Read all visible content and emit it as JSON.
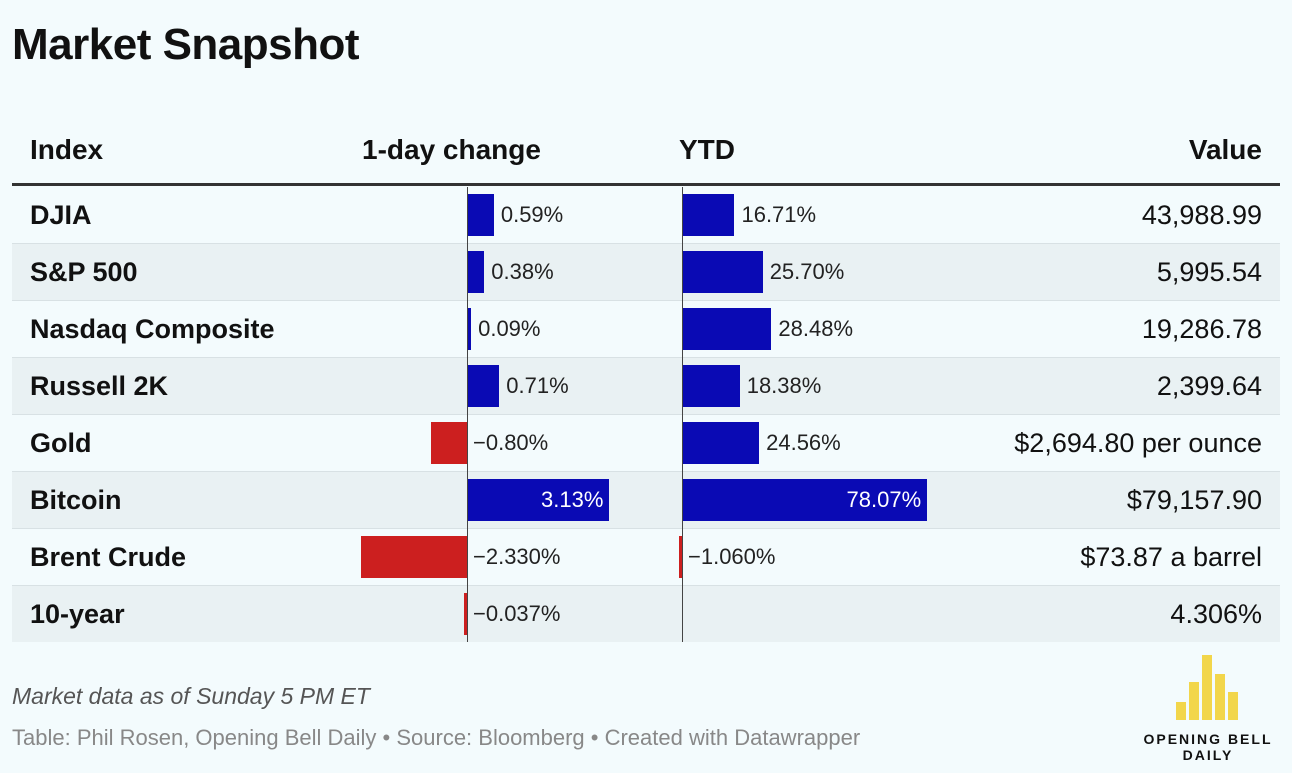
{
  "title": "Market Snapshot",
  "columns": {
    "index": "Index",
    "day": "1-day change",
    "ytd": "YTD",
    "value": "Value"
  },
  "colors": {
    "positive": "#0a0ab4",
    "negative": "#cc1f1f",
    "background": "#f3fbfd",
    "logo_yellow": "#f2d64b"
  },
  "chart_data": {
    "type": "table",
    "rows": [
      {
        "name": "DJIA",
        "day": 0.59,
        "day_label": "0.59%",
        "ytd": 16.71,
        "ytd_label": "16.71%",
        "value": "43,988.99"
      },
      {
        "name": "S&P 500",
        "day": 0.38,
        "day_label": "0.38%",
        "ytd": 25.7,
        "ytd_label": "25.70%",
        "value": "5,995.54"
      },
      {
        "name": "Nasdaq Composite",
        "day": 0.09,
        "day_label": "0.09%",
        "ytd": 28.48,
        "ytd_label": "28.48%",
        "value": "19,286.78"
      },
      {
        "name": "Russell 2K",
        "day": 0.71,
        "day_label": "0.71%",
        "ytd": 18.38,
        "ytd_label": "18.38%",
        "value": "2,399.64"
      },
      {
        "name": "Gold",
        "day": -0.8,
        "day_label": "−0.80%",
        "ytd": 24.56,
        "ytd_label": "24.56%",
        "value": "$2,694.80 per ounce"
      },
      {
        "name": "Bitcoin",
        "day": 3.13,
        "day_label": "3.13%",
        "ytd": 78.07,
        "ytd_label": "78.07%",
        "value": "$79,157.90"
      },
      {
        "name": "Brent Crude",
        "day": -2.33,
        "day_label": "−2.330%",
        "ytd": -1.06,
        "ytd_label": "−1.060%",
        "value": "$73.87 a barrel"
      },
      {
        "name": "10-year",
        "day": -0.037,
        "day_label": "−0.037%",
        "ytd": null,
        "ytd_label": "",
        "value": "4.306%"
      }
    ]
  },
  "footer": {
    "note": "Market data as of Sunday 5 PM ET",
    "credit": "Table: Phil Rosen, Opening Bell Daily • Source: Bloomberg • Created with Datawrapper"
  },
  "logo": {
    "line1": "OPENING BELL",
    "line2": "DAILY",
    "icon": "bar-chart-logo-icon"
  }
}
